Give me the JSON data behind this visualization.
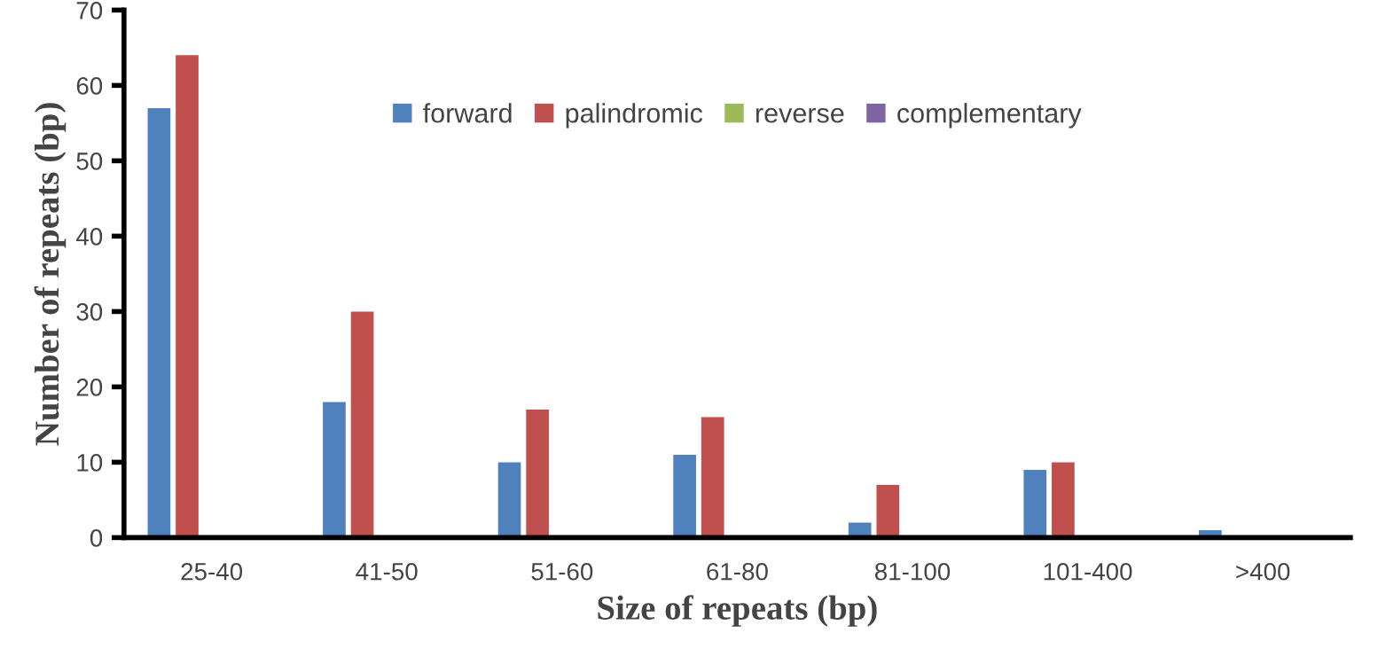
{
  "chart_data": {
    "type": "bar",
    "xlabel": "Size of repeats (bp)",
    "ylabel": "Number of repeats (bp)",
    "categories": [
      "25-40",
      "41-50",
      "51-60",
      "61-80",
      "81-100",
      "101-400",
      ">400"
    ],
    "series": [
      {
        "name": "forward",
        "color": "#4f81bd",
        "values": [
          57,
          18,
          10,
          11,
          2,
          9,
          1
        ]
      },
      {
        "name": "palindromic",
        "color": "#c0504d",
        "values": [
          64,
          30,
          17,
          16,
          7,
          10,
          0
        ]
      },
      {
        "name": "reverse",
        "color": "#9bbb59",
        "values": [
          0,
          0,
          0,
          0,
          0,
          0,
          0
        ]
      },
      {
        "name": "complementary",
        "color": "#8064a2",
        "values": [
          0,
          0,
          0,
          0,
          0,
          0,
          0
        ]
      }
    ],
    "ylim": [
      0,
      70
    ],
    "yticks": [
      0,
      10,
      20,
      30,
      40,
      50,
      60,
      70
    ],
    "grid": false,
    "legend": "top"
  }
}
